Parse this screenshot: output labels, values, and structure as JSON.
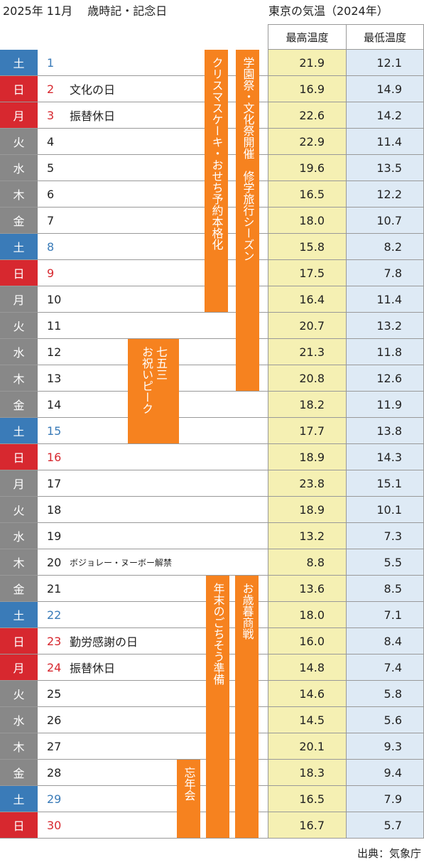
{
  "header": {
    "left_title": "2025年 11月　 歳時記・記念日",
    "right_title": "東京の気温（2024年）",
    "col_max": "最高温度",
    "col_min": "最低温度"
  },
  "colors": {
    "sat": "#3a7bb8",
    "sun": "#d7282f",
    "weekday": "#888888",
    "bar": "#f6821f",
    "max_bg": "#f5f0b3",
    "min_bg": "#deeaf5"
  },
  "rows": [
    {
      "dow": "土",
      "day": "1",
      "type": "sat",
      "note": "",
      "max": "21.9",
      "min": "12.1"
    },
    {
      "dow": "日",
      "day": "2",
      "type": "sun",
      "note": "文化の日",
      "max": "16.9",
      "min": "14.9"
    },
    {
      "dow": "月",
      "day": "3",
      "type": "hol",
      "note": "振替休日",
      "max": "22.6",
      "min": "14.2"
    },
    {
      "dow": "火",
      "day": "4",
      "type": "wk",
      "note": "",
      "max": "22.9",
      "min": "11.4"
    },
    {
      "dow": "水",
      "day": "5",
      "type": "wk",
      "note": "",
      "max": "19.6",
      "min": "13.5"
    },
    {
      "dow": "木",
      "day": "6",
      "type": "wk",
      "note": "",
      "max": "16.5",
      "min": "12.2"
    },
    {
      "dow": "金",
      "day": "7",
      "type": "wk",
      "note": "",
      "max": "18.0",
      "min": "10.7"
    },
    {
      "dow": "土",
      "day": "8",
      "type": "sat",
      "note": "",
      "max": "15.8",
      "min": "8.2"
    },
    {
      "dow": "日",
      "day": "9",
      "type": "sun",
      "note": "",
      "max": "17.5",
      "min": "7.8"
    },
    {
      "dow": "月",
      "day": "10",
      "type": "wk",
      "note": "",
      "max": "16.4",
      "min": "11.4"
    },
    {
      "dow": "火",
      "day": "11",
      "type": "wk",
      "note": "",
      "max": "20.7",
      "min": "13.2"
    },
    {
      "dow": "水",
      "day": "12",
      "type": "wk",
      "note": "",
      "max": "21.3",
      "min": "11.8"
    },
    {
      "dow": "木",
      "day": "13",
      "type": "wk",
      "note": "",
      "max": "20.8",
      "min": "12.6"
    },
    {
      "dow": "金",
      "day": "14",
      "type": "wk",
      "note": "",
      "max": "18.2",
      "min": "11.9"
    },
    {
      "dow": "土",
      "day": "15",
      "type": "sat",
      "note": "",
      "max": "17.7",
      "min": "13.8"
    },
    {
      "dow": "日",
      "day": "16",
      "type": "sun",
      "note": "",
      "max": "18.9",
      "min": "14.3"
    },
    {
      "dow": "月",
      "day": "17",
      "type": "wk",
      "note": "",
      "max": "23.8",
      "min": "15.1"
    },
    {
      "dow": "火",
      "day": "18",
      "type": "wk",
      "note": "",
      "max": "18.9",
      "min": "10.1"
    },
    {
      "dow": "水",
      "day": "19",
      "type": "wk",
      "note": "",
      "max": "13.2",
      "min": "7.3"
    },
    {
      "dow": "木",
      "day": "20",
      "type": "wk",
      "note": "ボジョレー・ヌーボー解禁",
      "max": "8.8",
      "min": "5.5"
    },
    {
      "dow": "金",
      "day": "21",
      "type": "wk",
      "note": "",
      "max": "13.6",
      "min": "8.5"
    },
    {
      "dow": "土",
      "day": "22",
      "type": "sat",
      "note": "",
      "max": "18.0",
      "min": "7.1"
    },
    {
      "dow": "日",
      "day": "23",
      "type": "sun",
      "note": "勤労感謝の日",
      "max": "16.0",
      "min": "8.4"
    },
    {
      "dow": "月",
      "day": "24",
      "type": "hol",
      "note": "振替休日",
      "max": "14.8",
      "min": "7.4"
    },
    {
      "dow": "火",
      "day": "25",
      "type": "wk",
      "note": "",
      "max": "14.6",
      "min": "5.8"
    },
    {
      "dow": "水",
      "day": "26",
      "type": "wk",
      "note": "",
      "max": "14.5",
      "min": "5.6"
    },
    {
      "dow": "木",
      "day": "27",
      "type": "wk",
      "note": "",
      "max": "20.1",
      "min": "9.3"
    },
    {
      "dow": "金",
      "day": "28",
      "type": "wk",
      "note": "",
      "max": "18.3",
      "min": "9.4"
    },
    {
      "dow": "土",
      "day": "29",
      "type": "sat",
      "note": "",
      "max": "16.5",
      "min": "7.9"
    },
    {
      "dow": "日",
      "day": "30",
      "type": "sun",
      "note": "",
      "max": "16.7",
      "min": "5.7"
    }
  ],
  "bars": [
    {
      "id": "christmas",
      "lines": [
        "クリスマスケーキ・おせち予約本格化"
      ],
      "start": 1,
      "end": 10
    },
    {
      "id": "school",
      "lines": [
        "学園祭・文化祭開催　修学旅行シーズン"
      ],
      "start": 1,
      "end": 13
    },
    {
      "id": "shichigosan",
      "lines": [
        "七五三",
        "お祝いピーク"
      ],
      "start": 12,
      "end": 15
    },
    {
      "id": "yearend",
      "lines": [
        "年末のごちそう準備"
      ],
      "start": 21,
      "end": 30
    },
    {
      "id": "oseibo",
      "lines": [
        "お歳暮商戦"
      ],
      "start": 21,
      "end": 30
    },
    {
      "id": "bonenkai",
      "lines": [
        "忘年会"
      ],
      "start": 28,
      "end": 30
    }
  ],
  "source": "出典：気象庁"
}
